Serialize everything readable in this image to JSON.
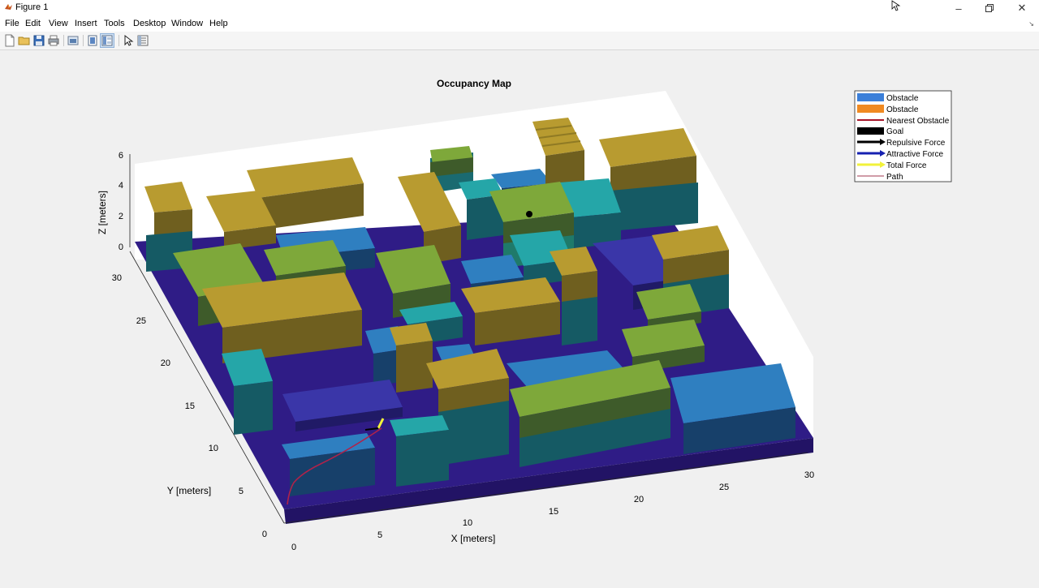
{
  "window": {
    "title": "Figure 1",
    "controls": [
      "minimize",
      "restore",
      "close"
    ]
  },
  "menu": {
    "items": [
      "File",
      "Edit",
      "View",
      "Insert",
      "Tools",
      "Desktop",
      "Window",
      "Help"
    ]
  },
  "toolbar": {
    "buttons": [
      "new-figure-icon",
      "open-file-icon",
      "save-icon",
      "print-icon",
      "link-plot-icon",
      "hide-plot-tools-icon",
      "show-plot-tools-icon",
      "edit-plot-icon",
      "property-inspector-icon"
    ]
  },
  "figure": {
    "title": "Occupancy Map",
    "xlabel": "X [meters]",
    "ylabel": "Y [meters]",
    "zlabel": "Z [meters]",
    "x_ticks": [
      "0",
      "5",
      "10",
      "15",
      "20",
      "25",
      "30"
    ],
    "y_ticks": [
      "0",
      "5",
      "10",
      "15",
      "20",
      "25",
      "30"
    ],
    "z_ticks": [
      "0",
      "2",
      "4",
      "6"
    ],
    "legend": [
      {
        "label": "Obstacle",
        "color": "#3b7fd9",
        "kind": "patch"
      },
      {
        "label": "Obstacle",
        "color": "#f08a22",
        "kind": "patch"
      },
      {
        "label": "Nearest Obstacle",
        "color": "#a8152a",
        "kind": "line"
      },
      {
        "label": "Goal",
        "color": "#000000",
        "kind": "patch"
      },
      {
        "label": "Repulsive Force",
        "color": "#000000",
        "kind": "arrow"
      },
      {
        "label": "Attractive Force",
        "color": "#1520b0",
        "kind": "arrow"
      },
      {
        "label": "Total Force",
        "color": "#f2f23a",
        "kind": "arrow"
      },
      {
        "label": "Path",
        "color": "#a03a50",
        "kind": "thinline"
      }
    ],
    "colors": {
      "floor": "#2f1c86",
      "wall_back": "#ffffff",
      "tan_top": "#b89b30",
      "tan_side": "#6f5f1f",
      "olive_top": "#7ea83a",
      "olive_side": "#3e5b2a",
      "teal_top": "#25a6a8",
      "teal_side": "#155a64",
      "blue_top": "#2f7fc0",
      "blue_side": "#17406a",
      "indigo_top": "#3a36a8",
      "indigo_side": "#201a66",
      "goal": "#000000",
      "path": "#b0224a"
    }
  }
}
